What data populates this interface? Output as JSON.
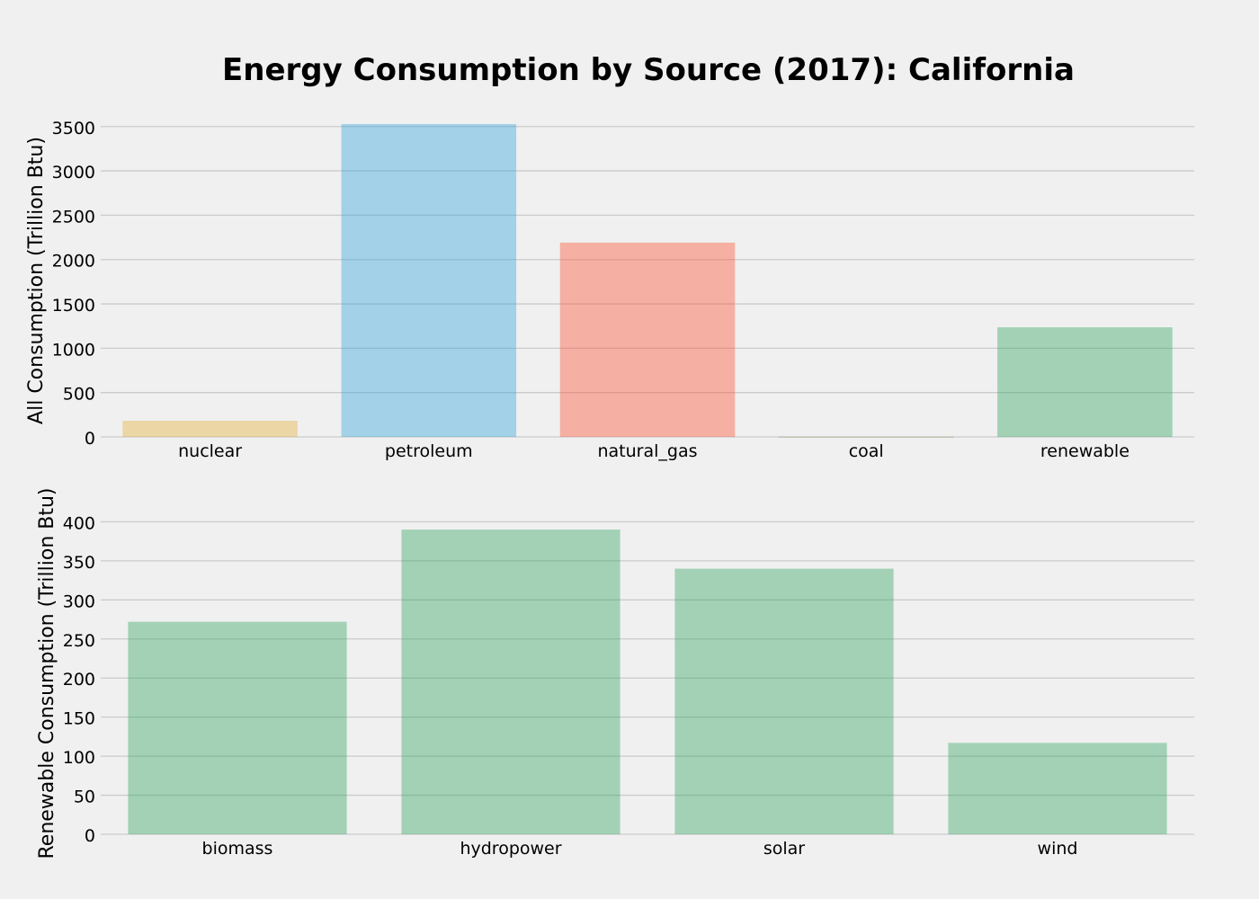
{
  "figure": {
    "title": "Energy Consumption by Source (2017): California",
    "background_color": "#f0f0f0",
    "grid_color": "#cbcbcb"
  },
  "chart_data": [
    {
      "type": "bar",
      "ylabel": "All Consumption (Trillion Btu)",
      "xlabel": "",
      "categories": [
        "nuclear",
        "petroleum",
        "natural_gas",
        "coal",
        "renewable"
      ],
      "values": [
        182,
        3528,
        2191,
        3,
        1236
      ],
      "colors": [
        "#e5ae38",
        "#30a2da",
        "#fc4f30",
        "#6d904f",
        "#2ca25f"
      ],
      "ylim": [
        0,
        3528
      ],
      "yticks": [
        0,
        500,
        1000,
        1500,
        2000,
        2500,
        3000,
        3500
      ],
      "grid": true,
      "bar_opacity": 0.4
    },
    {
      "type": "bar",
      "ylabel": "Renewable Consumption (Trillion Btu)",
      "xlabel": "",
      "categories": [
        "biomass",
        "hydropower",
        "solar",
        "wind"
      ],
      "values": [
        272,
        390,
        340,
        117
      ],
      "colors": [
        "#2ca25f",
        "#2ca25f",
        "#2ca25f",
        "#2ca25f"
      ],
      "ylim": [
        0,
        412
      ],
      "yticks": [
        0,
        50,
        100,
        150,
        200,
        250,
        300,
        350,
        400
      ],
      "grid": true,
      "bar_opacity": 0.4
    }
  ]
}
